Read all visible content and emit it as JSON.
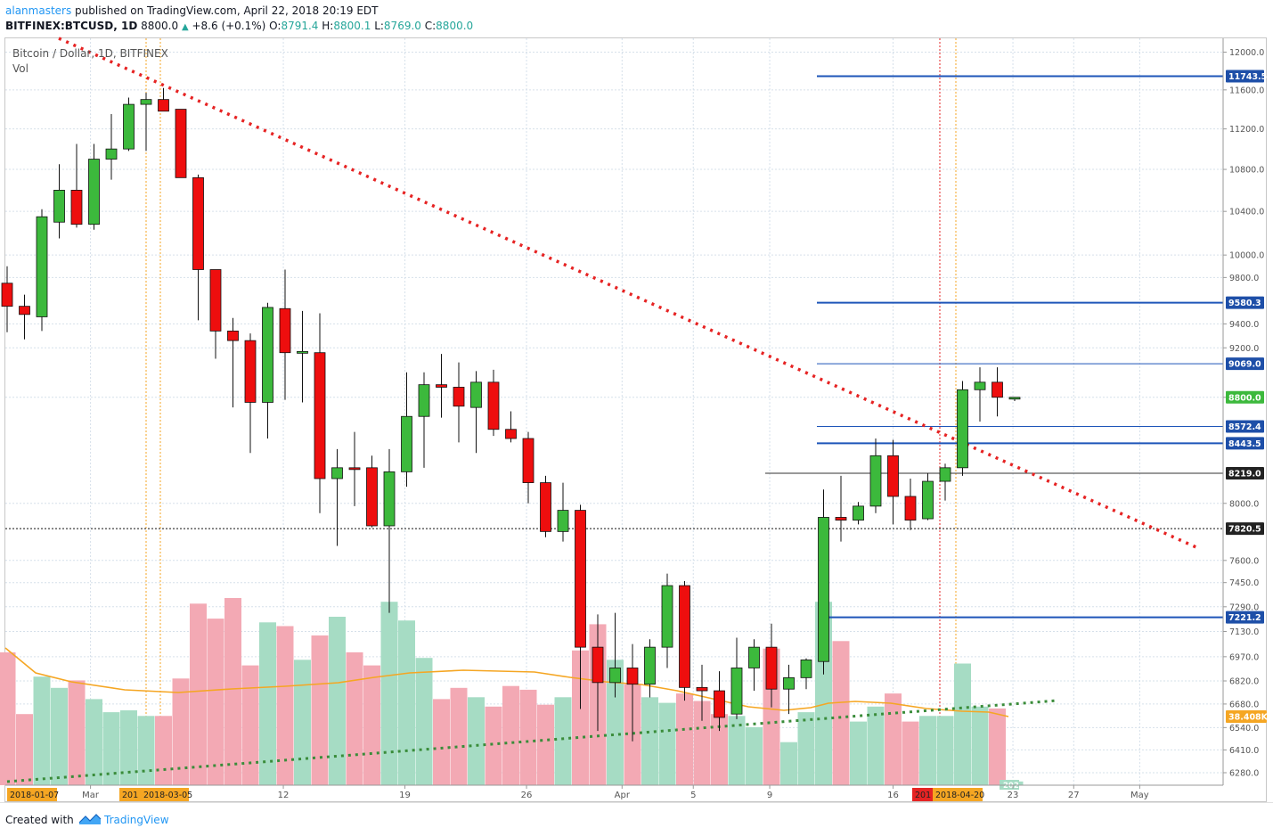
{
  "header": {
    "author": "alanmasters",
    "published": "published on TradingView.com, April 22, 2018 20:19 EDT",
    "symbol": "BITFINEX:BTCUSD, 1D",
    "last": "8800.0",
    "change": "+8.6 (+0.1%)",
    "o_label": "O:",
    "o": "8791.4",
    "h_label": "H:",
    "h": "8800.1",
    "l_label": "L:",
    "l": "8769.0",
    "c_label": "C:",
    "c": "8800.0"
  },
  "legend": {
    "series_title": "Bitcoin / Dollar, 1D, BITFINEX",
    "volume_label": "Vol"
  },
  "footer": {
    "created": "Created with",
    "brand": "TradingView"
  },
  "colors": {
    "up": "#3cb93c",
    "down": "#ee0e0e",
    "vol_up": "#a6dcc4",
    "vol_down": "#f3a9b4",
    "level": "#1e55b9",
    "trend": "#e62323",
    "ma": "#f5a623",
    "vol_trend": "#3a8c3a"
  },
  "chart_data": {
    "type": "candlestick",
    "y_scale": "log",
    "ylim": [
      6210,
      12150
    ],
    "price_ticks": [
      "12000.0",
      "11600.0",
      "11200.0",
      "10800.0",
      "10400.0",
      "10000.0",
      "9800.0",
      "9400.0",
      "9200.0",
      "8800.0",
      "8000.0",
      "7600.0",
      "7450.0",
      "7290.0",
      "7130.0",
      "6970.0",
      "6820.0",
      "6680.0",
      "6540.0",
      "6410.0",
      "6280.0"
    ],
    "x_ticks": [
      "Mar",
      "12",
      "19",
      "26",
      "Apr",
      "5",
      "9",
      "16",
      "23",
      "27",
      "May"
    ],
    "x_highlight_labels": [
      "2018-01-07",
      "201",
      "2018-03-05",
      "201",
      "2018-04-20"
    ],
    "candles": [
      {
        "o": 9750,
        "h": 9900,
        "l": 9330,
        "c": 9550
      },
      {
        "o": 9550,
        "h": 9650,
        "l": 9270,
        "c": 9480
      },
      {
        "o": 9460,
        "h": 10420,
        "l": 9340,
        "c": 10350
      },
      {
        "o": 10300,
        "h": 10850,
        "l": 10150,
        "c": 10600
      },
      {
        "o": 10600,
        "h": 11050,
        "l": 10250,
        "c": 10280
      },
      {
        "o": 10280,
        "h": 11050,
        "l": 10230,
        "c": 10900
      },
      {
        "o": 10900,
        "h": 11350,
        "l": 10700,
        "c": 11000
      },
      {
        "o": 11000,
        "h": 11520,
        "l": 10980,
        "c": 11450
      },
      {
        "o": 11450,
        "h": 11570,
        "l": 10980,
        "c": 11500
      },
      {
        "o": 11500,
        "h": 11620,
        "l": 11380,
        "c": 11380
      },
      {
        "o": 11400,
        "h": 11400,
        "l": 10720,
        "c": 10720
      },
      {
        "o": 10720,
        "h": 10750,
        "l": 9430,
        "c": 9870
      },
      {
        "o": 9870,
        "h": 9870,
        "l": 9110,
        "c": 9340
      },
      {
        "o": 9340,
        "h": 9450,
        "l": 8720,
        "c": 9260
      },
      {
        "o": 9260,
        "h": 9320,
        "l": 8370,
        "c": 8760
      },
      {
        "o": 8760,
        "h": 9580,
        "l": 8480,
        "c": 9540
      },
      {
        "o": 9530,
        "h": 9870,
        "l": 8780,
        "c": 9160
      },
      {
        "o": 9160,
        "h": 9510,
        "l": 8760,
        "c": 9170
      },
      {
        "o": 9160,
        "h": 9490,
        "l": 7930,
        "c": 8180
      },
      {
        "o": 8180,
        "h": 8400,
        "l": 7700,
        "c": 8260
      },
      {
        "o": 8260,
        "h": 8530,
        "l": 7980,
        "c": 8250
      },
      {
        "o": 8260,
        "h": 8350,
        "l": 7830,
        "c": 7840
      },
      {
        "o": 7840,
        "h": 8400,
        "l": 7250,
        "c": 8230
      },
      {
        "o": 8230,
        "h": 9000,
        "l": 8120,
        "c": 8650
      },
      {
        "o": 8650,
        "h": 9000,
        "l": 8260,
        "c": 8900
      },
      {
        "o": 8900,
        "h": 9150,
        "l": 8640,
        "c": 8880
      },
      {
        "o": 8880,
        "h": 9080,
        "l": 8450,
        "c": 8730
      },
      {
        "o": 8720,
        "h": 9010,
        "l": 8370,
        "c": 8920
      },
      {
        "o": 8920,
        "h": 9020,
        "l": 8500,
        "c": 8550
      },
      {
        "o": 8550,
        "h": 8690,
        "l": 8450,
        "c": 8480
      },
      {
        "o": 8480,
        "h": 8530,
        "l": 8000,
        "c": 8150
      },
      {
        "o": 8150,
        "h": 8200,
        "l": 7760,
        "c": 7800
      },
      {
        "o": 7800,
        "h": 8150,
        "l": 7730,
        "c": 7950
      },
      {
        "o": 7950,
        "h": 7990,
        "l": 6650,
        "c": 7030
      },
      {
        "o": 7030,
        "h": 7240,
        "l": 6520,
        "c": 6810
      },
      {
        "o": 6810,
        "h": 7250,
        "l": 6720,
        "c": 6900
      },
      {
        "o": 6900,
        "h": 7050,
        "l": 6460,
        "c": 6800
      },
      {
        "o": 6800,
        "h": 7080,
        "l": 6720,
        "c": 7030
      },
      {
        "o": 7030,
        "h": 7510,
        "l": 6900,
        "c": 7430
      },
      {
        "o": 7430,
        "h": 7460,
        "l": 6700,
        "c": 6780
      },
      {
        "o": 6780,
        "h": 6920,
        "l": 6580,
        "c": 6760
      },
      {
        "o": 6760,
        "h": 6880,
        "l": 6520,
        "c": 6600
      },
      {
        "o": 6620,
        "h": 7090,
        "l": 6590,
        "c": 6900
      },
      {
        "o": 6900,
        "h": 7080,
        "l": 6760,
        "c": 7030
      },
      {
        "o": 7030,
        "h": 7180,
        "l": 6660,
        "c": 6770
      },
      {
        "o": 6770,
        "h": 6920,
        "l": 6620,
        "c": 6840
      },
      {
        "o": 6840,
        "h": 6960,
        "l": 6770,
        "c": 6950
      },
      {
        "o": 6940,
        "h": 8100,
        "l": 6860,
        "c": 7900
      },
      {
        "o": 7900,
        "h": 8200,
        "l": 7730,
        "c": 7880
      },
      {
        "o": 7880,
        "h": 8010,
        "l": 7850,
        "c": 7980
      },
      {
        "o": 7980,
        "h": 8480,
        "l": 7930,
        "c": 8350
      },
      {
        "o": 8350,
        "h": 8470,
        "l": 7850,
        "c": 8050
      },
      {
        "o": 8050,
        "h": 8180,
        "l": 7810,
        "c": 7880
      },
      {
        "o": 7890,
        "h": 8220,
        "l": 7880,
        "c": 8160
      },
      {
        "o": 8160,
        "h": 8290,
        "l": 8020,
        "c": 8260
      },
      {
        "o": 8260,
        "h": 8930,
        "l": 8200,
        "c": 8860
      },
      {
        "o": 8860,
        "h": 9040,
        "l": 8610,
        "c": 8920
      },
      {
        "o": 8920,
        "h": 9040,
        "l": 8650,
        "c": 8800
      },
      {
        "o": 8790,
        "h": 8800,
        "l": 8770,
        "c": 8800
      }
    ],
    "volume_relative": [
      0.71,
      0.38,
      0.58,
      0.52,
      0.56,
      0.46,
      0.39,
      0.4,
      0.37,
      0.37,
      0.57,
      0.97,
      0.89,
      1.0,
      0.64,
      0.87,
      0.85,
      0.67,
      0.8,
      0.9,
      0.71,
      0.64,
      0.98,
      0.88,
      0.68,
      0.46,
      0.52,
      0.47,
      0.42,
      0.53,
      0.51,
      0.43,
      0.47,
      0.72,
      0.86,
      0.67,
      0.54,
      0.47,
      0.44,
      0.49,
      0.45,
      0.38,
      0.37,
      0.31,
      0.73,
      0.23,
      0.39,
      0.98,
      0.77,
      0.34,
      0.42,
      0.49,
      0.34,
      0.37,
      0.37,
      0.65,
      0.42,
      0.41,
      0.02
    ],
    "horizontal_levels": [
      {
        "price": 11743.5,
        "label": "11743.5",
        "style": "thick-blue"
      },
      {
        "price": 9580.3,
        "label": "9580.3",
        "style": "thick-blue"
      },
      {
        "price": 9069.0,
        "label": "9069.0",
        "style": "thin-blue"
      },
      {
        "price": 8572.4,
        "label": "8572.4",
        "style": "thin-blue"
      },
      {
        "price": 8443.5,
        "label": "8443.5",
        "style": "thick-blue"
      },
      {
        "price": 8219.0,
        "label": "8219.0",
        "style": "thin-dark"
      },
      {
        "price": 7820.5,
        "label": "7820.5",
        "style": "dotted-black"
      },
      {
        "price": 7221.2,
        "label": "7221.2",
        "style": "thick-blue"
      }
    ],
    "last_price_label": "8800.0",
    "volume_last_label": "38.408K",
    "volume_corner_label": "202",
    "trendline": {
      "style": "dotted-red",
      "from_price": 12150,
      "to_price": 7690
    }
  }
}
